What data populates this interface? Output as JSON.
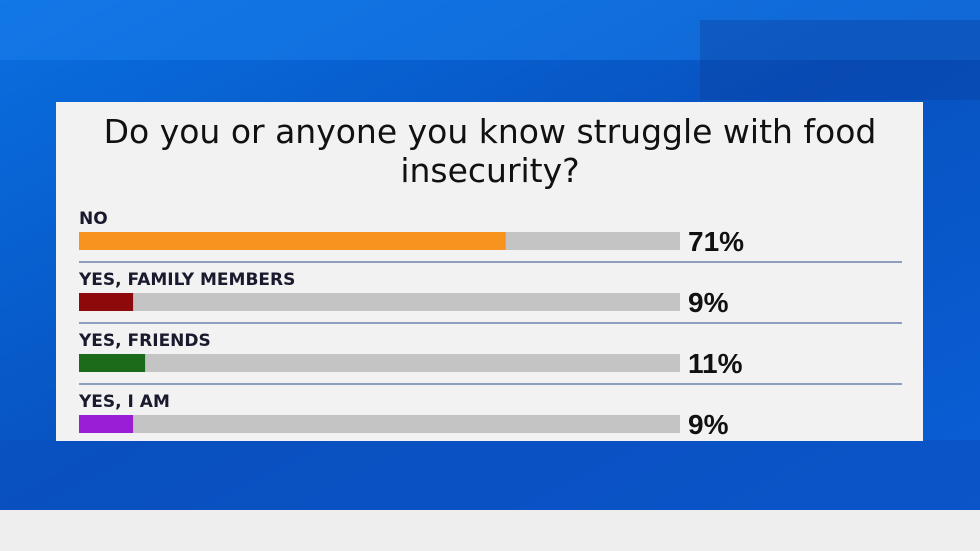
{
  "chart_data": {
    "type": "bar",
    "title": "Do you or anyone you know struggle with food insecurity?",
    "categories": [
      "NO",
      "YES, FAMILY MEMBERS",
      "YES, FRIENDS",
      "YES, I AM"
    ],
    "values": [
      71,
      9,
      11,
      9
    ],
    "value_labels": [
      "71%",
      "9%",
      "11%",
      "9%"
    ],
    "colors": [
      "#f7931e",
      "#8e0a0a",
      "#1b6b1b",
      "#9a1ed6"
    ],
    "xlim": [
      0,
      100
    ]
  }
}
